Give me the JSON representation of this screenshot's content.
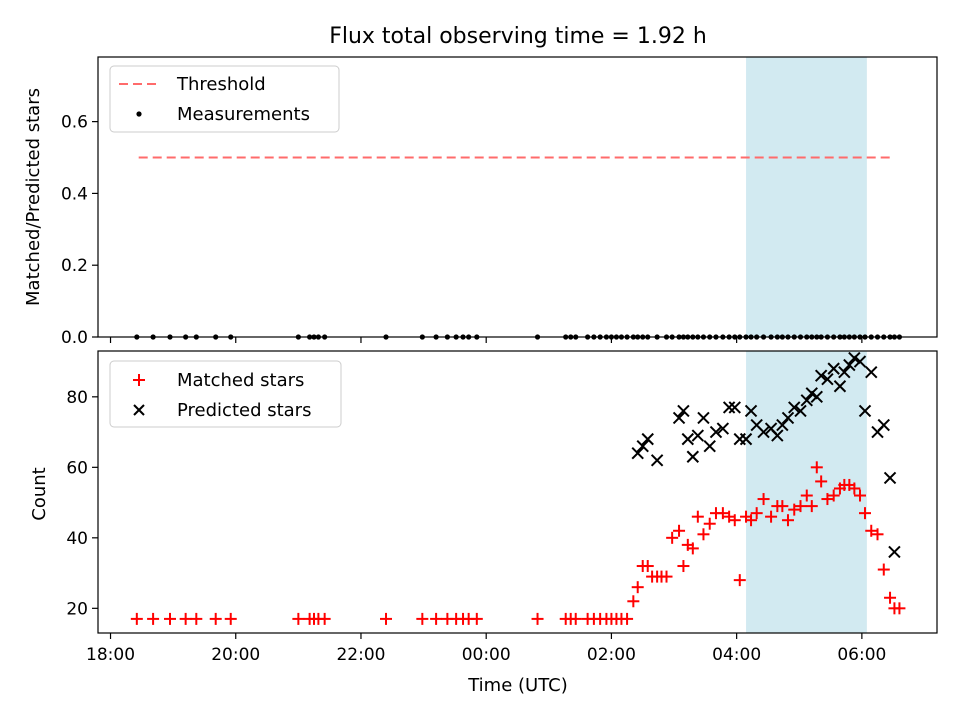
{
  "title": "Flux total observing time = 1.92 h",
  "colors": {
    "threshold": "#ff6b6b",
    "measurement": "#000000",
    "matched": "#ff0000",
    "predicted": "#000000",
    "highlight": "#add8e6"
  },
  "chart_data": [
    {
      "type": "scatter",
      "ylabel": "Matched/Predicted stars",
      "ylim": [
        0,
        0.78
      ],
      "yticks": [
        0.0,
        0.2,
        0.4,
        0.6
      ],
      "ytick_labels": [
        "0.0",
        "0.2",
        "0.4",
        "0.6"
      ],
      "xlim": [
        17.8,
        31.2
      ],
      "highlight_span": [
        28.15,
        30.08
      ],
      "threshold": {
        "name": "Threshold",
        "y": 0.5,
        "x": [
          18.45,
          30.5
        ]
      },
      "legend": [
        "Threshold",
        "Measurements"
      ],
      "series": [
        {
          "name": "Measurements",
          "x": [
            18.42,
            18.68,
            18.95,
            19.2,
            19.37,
            19.68,
            19.92,
            21.0,
            21.18,
            21.25,
            21.32,
            21.42,
            22.4,
            22.98,
            23.2,
            23.38,
            23.52,
            23.63,
            23.72,
            23.85,
            24.82,
            25.27,
            25.35,
            25.43,
            25.62,
            25.72,
            25.82,
            25.92,
            26.0,
            26.08,
            26.16,
            26.25,
            26.35,
            26.42,
            26.5,
            26.58,
            26.73,
            26.88,
            26.97,
            27.08,
            27.15,
            27.22,
            27.3,
            27.38,
            27.47,
            27.57,
            27.67,
            27.78,
            27.88,
            27.97,
            28.05,
            28.15,
            28.23,
            28.32,
            28.43,
            28.55,
            28.65,
            28.73,
            28.82,
            28.92,
            29.02,
            29.12,
            29.2,
            29.28,
            29.35,
            29.45,
            29.55,
            29.65,
            29.72,
            29.8,
            29.88,
            29.97,
            30.05,
            30.15,
            30.25,
            30.35,
            30.45,
            30.52,
            30.6
          ],
          "y": [
            0.0,
            0.0,
            0.0,
            0.0,
            0.0,
            0.0,
            0.0,
            0.0,
            0.0,
            0.0,
            0.0,
            0.0,
            0.0,
            0.0,
            0.0,
            0.0,
            0.0,
            0.0,
            0.0,
            0.0,
            0.0,
            0.0,
            0.0,
            0.0,
            0.0,
            0.0,
            0.0,
            0.0,
            0.0,
            0.0,
            0.0,
            0.0,
            0.0,
            0.0,
            0.0,
            0.0,
            0.0,
            0.0,
            0.0,
            0.0,
            0.0,
            0.0,
            0.0,
            0.0,
            0.0,
            0.0,
            0.0,
            0.0,
            0.0,
            0.0,
            0.0,
            0.0,
            0.0,
            0.0,
            0.0,
            0.0,
            0.0,
            0.0,
            0.0,
            0.0,
            0.0,
            0.0,
            0.0,
            0.0,
            0.0,
            0.0,
            0.0,
            0.0,
            0.0,
            0.0,
            0.0,
            0.0,
            0.0,
            0.0,
            0.0,
            0.0,
            0.0,
            0.0,
            0.0
          ]
        }
      ]
    },
    {
      "type": "scatter",
      "xlabel": "Time (UTC)",
      "ylabel": "Count",
      "ylim": [
        13,
        93
      ],
      "yticks": [
        20,
        40,
        60,
        80
      ],
      "ytick_labels": [
        "20",
        "40",
        "60",
        "80"
      ],
      "xlim": [
        17.8,
        31.2
      ],
      "xticks": [
        18,
        20,
        22,
        24,
        26,
        28,
        30
      ],
      "xtick_labels": [
        "18:00",
        "20:00",
        "22:00",
        "00:00",
        "02:00",
        "04:00",
        "06:00"
      ],
      "highlight_span": [
        28.15,
        30.08
      ],
      "legend": [
        "Matched stars",
        "Predicted stars"
      ],
      "series": [
        {
          "name": "Matched stars",
          "x": [
            18.42,
            18.68,
            18.95,
            19.2,
            19.37,
            19.68,
            19.92,
            21.0,
            21.18,
            21.25,
            21.32,
            21.42,
            22.4,
            22.98,
            23.2,
            23.38,
            23.52,
            23.63,
            23.72,
            23.85,
            24.82,
            25.27,
            25.35,
            25.43,
            25.62,
            25.72,
            25.82,
            25.92,
            26.0,
            26.08,
            26.16,
            26.25,
            26.35,
            26.42,
            26.5,
            26.58,
            26.65,
            26.73,
            26.8,
            26.88,
            26.97,
            27.08,
            27.15,
            27.22,
            27.3,
            27.38,
            27.47,
            27.57,
            27.67,
            27.78,
            27.88,
            27.97,
            28.05,
            28.15,
            28.23,
            28.32,
            28.43,
            28.55,
            28.65,
            28.73,
            28.82,
            28.92,
            29.02,
            29.12,
            29.2,
            29.28,
            29.35,
            29.45,
            29.55,
            29.65,
            29.72,
            29.8,
            29.88,
            29.97,
            30.05,
            30.15,
            30.25,
            30.35,
            30.45,
            30.52,
            30.6
          ],
          "y": [
            17,
            17,
            17,
            17,
            17,
            17,
            17,
            17,
            17,
            17,
            17,
            17,
            17,
            17,
            17,
            17,
            17,
            17,
            17,
            17,
            17,
            17,
            17,
            17,
            17,
            17,
            17,
            17,
            17,
            17,
            17,
            17,
            22,
            26,
            32,
            32,
            29,
            29,
            29,
            29,
            40,
            42,
            32,
            38,
            37,
            46,
            41,
            44,
            47,
            47,
            46,
            45,
            28,
            46,
            45,
            47,
            51,
            46,
            49,
            49,
            45,
            48,
            49,
            52,
            49,
            60,
            56,
            51,
            52,
            54,
            55,
            55,
            54,
            52,
            47,
            42,
            41,
            31,
            23,
            20,
            20
          ]
        },
        {
          "name": "Predicted stars",
          "x": [
            26.42,
            26.5,
            26.58,
            26.73,
            27.08,
            27.15,
            27.22,
            27.3,
            27.38,
            27.47,
            27.57,
            27.67,
            27.78,
            27.88,
            27.97,
            28.05,
            28.15,
            28.23,
            28.32,
            28.43,
            28.55,
            28.65,
            28.73,
            28.82,
            28.92,
            29.02,
            29.12,
            29.2,
            29.28,
            29.35,
            29.45,
            29.55,
            29.65,
            29.72,
            29.8,
            29.88,
            29.97,
            30.05,
            30.15,
            30.25,
            30.35,
            30.45,
            30.52
          ],
          "y": [
            64,
            66,
            68,
            62,
            74,
            76,
            68,
            63,
            69,
            74,
            66,
            70,
            71,
            77,
            77,
            68,
            68,
            76,
            72,
            70,
            71,
            69,
            72,
            74,
            77,
            76,
            79,
            81,
            80,
            86,
            85,
            88,
            83,
            87,
            89,
            91,
            90,
            76,
            87,
            70,
            72,
            57,
            36
          ]
        }
      ]
    }
  ]
}
